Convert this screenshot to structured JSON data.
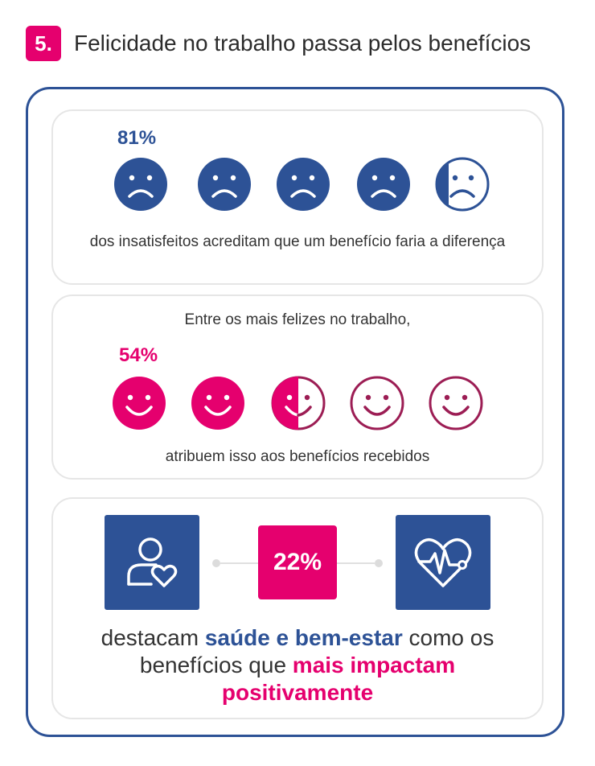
{
  "header": {
    "number": "5.",
    "title": "Felicidade no trabalho passa pelos benefícios"
  },
  "dissatisfied": {
    "percent_label": "81%",
    "caption": "dos insatisfeitos acreditam que um benefício faria a diferença",
    "faces_total": 5,
    "faces_filled": 4,
    "color": "#2d5296"
  },
  "happiest": {
    "intro": "Entre os mais felizes no trabalho,",
    "percent_label": "54%",
    "caption": "atribuem isso aos benefícios recebidos",
    "faces_total": 5,
    "faces_filled": 2.5,
    "fill_color": "#e5006e",
    "outline_color": "#9c1d54"
  },
  "health": {
    "percent_label": "22%",
    "text_before": "destacam",
    "highlight_1": "saúde e bem-estar",
    "text_middle": "como os benefícios que",
    "highlight_2": "mais impactam positivamente",
    "icons": [
      "user-heart-icon",
      "heartbeat-icon"
    ]
  }
}
